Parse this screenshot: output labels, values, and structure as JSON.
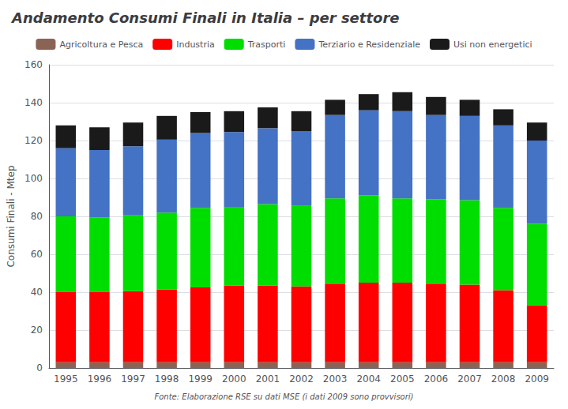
{
  "chart_data": {
    "type": "bar",
    "stacked": true,
    "title": "Andamento Consumi Finali in Italia – per settore",
    "ylabel": "Consumi Finali - Mtep",
    "annotations": [
      "Fonte: Elaborazione RSE su dati MSE (i dati 2009 sono provvisori)"
    ],
    "categories": [
      1995,
      1996,
      1997,
      1998,
      1999,
      2000,
      2001,
      2002,
      2003,
      2004,
      2005,
      2006,
      2007,
      2008,
      2009
    ],
    "series": [
      {
        "name": "Agricoltura e Pesca",
        "color": "#8B6355",
        "values": [
          3.0,
          3.0,
          3.0,
          3.0,
          3.0,
          3.0,
          3.0,
          3.0,
          3.0,
          3.0,
          3.0,
          3.0,
          3.0,
          3.0,
          3.0
        ]
      },
      {
        "name": "Industria",
        "color": "#FF0000",
        "values": [
          37.0,
          37.0,
          37.5,
          38.5,
          39.5,
          40.5,
          40.5,
          40.0,
          41.5,
          42.0,
          42.0,
          41.5,
          41.0,
          38.0,
          30.0
        ]
      },
      {
        "name": "Trasporti",
        "color": "#00DD00",
        "values": [
          40.0,
          39.5,
          40.0,
          40.5,
          42.0,
          41.5,
          43.0,
          42.5,
          45.0,
          46.0,
          44.5,
          44.5,
          44.5,
          43.5,
          43.0
        ]
      },
      {
        "name": "Terziario e Residenziale",
        "color": "#4472C4",
        "values": [
          36.0,
          35.5,
          36.5,
          38.5,
          39.5,
          39.5,
          40.0,
          39.5,
          44.0,
          45.0,
          46.0,
          44.5,
          44.5,
          43.5,
          44.0
        ]
      },
      {
        "name": "Usi non energetici",
        "color": "#1A1A1A",
        "values": [
          12.0,
          12.0,
          12.5,
          12.5,
          11.0,
          11.0,
          11.0,
          10.5,
          8.0,
          8.5,
          10.0,
          9.5,
          8.5,
          8.5,
          9.5
        ]
      }
    ],
    "ylim": [
      0,
      160
    ],
    "yticks": [
      0,
      20,
      40,
      60,
      80,
      100,
      120,
      140,
      160
    ],
    "grid": true,
    "legend": "top"
  }
}
